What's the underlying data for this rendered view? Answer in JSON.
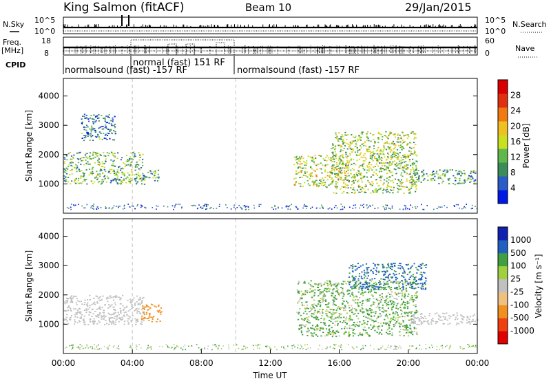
{
  "header": {
    "site": "King Salmon (fitACF)",
    "beam": "Beam 10",
    "date": "29/Jan/2015"
  },
  "status_rows": {
    "nsky": {
      "label": "N.Sky",
      "tick_top": "10^5",
      "tick_bottom": "10^0"
    },
    "nsearch": {
      "label": "N.Search",
      "tick_top": "10^5",
      "tick_bottom": "10^0"
    },
    "freq": {
      "label_line1": "Freq.",
      "label_line2": "[MHz]",
      "tick_top": "18",
      "tick_bottom": "8"
    },
    "nave": {
      "label": "Nave",
      "tick_top": "60",
      "tick_bottom": "0"
    },
    "cpid": {
      "label": "CPID"
    }
  },
  "cpid_segments": [
    {
      "label": "normalsound (fast) -157 RF",
      "start": "00:00",
      "end": "04:00"
    },
    {
      "label": "normal (fast) 151 RF",
      "start": "04:00",
      "end": "10:00"
    },
    {
      "label": "normalsound (fast) -157 RF",
      "start": "10:00",
      "end": "24:00"
    }
  ],
  "colors": {
    "power": [
      "#0018e6",
      "#2a5cc8",
      "#3a8c5a",
      "#5fb84a",
      "#c8e020",
      "#f0c020",
      "#f07a10",
      "#e03010",
      "#d80000"
    ],
    "velocity": [
      "#e00000",
      "#f04010",
      "#f09020",
      "#f0c080",
      "#c0c0c0",
      "#a0d040",
      "#40a040",
      "#2060c0",
      "#1020b0"
    ]
  },
  "chart_data": [
    {
      "type": "heatmap",
      "panel": "power",
      "xlabel": "",
      "ylabel": "Slant Range [km]",
      "xlim": [
        "00:00",
        "24:00"
      ],
      "ylim": [
        0,
        4600
      ],
      "x_ticks": [
        "00:00",
        "04:00",
        "08:00",
        "12:00",
        "16:00",
        "20:00",
        "00:00"
      ],
      "y_ticks": [
        1000,
        2000,
        3000,
        4000
      ],
      "colorbar": {
        "label": "Power [dB]",
        "ticks": [
          4,
          8,
          12,
          16,
          20,
          24,
          28
        ]
      },
      "echo_regions": [
        {
          "start": "00:00",
          "end": "04:40",
          "range_min": 1000,
          "range_max": 2100,
          "level": 12
        },
        {
          "start": "01:00",
          "end": "03:00",
          "range_min": 2500,
          "range_max": 3400,
          "level": 8
        },
        {
          "start": "04:30",
          "end": "05:30",
          "range_min": 1100,
          "range_max": 1500,
          "level": 10
        },
        {
          "start": "13:20",
          "end": "16:30",
          "range_min": 900,
          "range_max": 2000,
          "level": 16
        },
        {
          "start": "15:30",
          "end": "20:30",
          "range_min": 700,
          "range_max": 2800,
          "level": 14
        },
        {
          "start": "20:00",
          "end": "24:00",
          "range_min": 1000,
          "range_max": 1500,
          "level": 10
        }
      ]
    },
    {
      "type": "heatmap",
      "panel": "velocity",
      "xlabel": "Time UT",
      "ylabel": "Slant Range [km]",
      "xlim": [
        "00:00",
        "24:00"
      ],
      "ylim": [
        0,
        4600
      ],
      "x_ticks": [
        "00:00",
        "04:00",
        "08:00",
        "12:00",
        "16:00",
        "20:00",
        "00:00"
      ],
      "y_ticks": [
        1000,
        2000,
        3000,
        4000
      ],
      "colorbar": {
        "label": "Velocity [m s⁻¹]",
        "ticks": [
          1000,
          500,
          100,
          25,
          -25,
          -100,
          -500,
          -1000
        ]
      },
      "echo_regions": [
        {
          "start": "00:00",
          "end": "04:40",
          "range_min": 1000,
          "range_max": 2000,
          "level": 0
        },
        {
          "start": "04:30",
          "end": "05:40",
          "range_min": 1100,
          "range_max": 1700,
          "level": -300
        },
        {
          "start": "13:30",
          "end": "20:30",
          "range_min": 600,
          "range_max": 2500,
          "level": 150
        },
        {
          "start": "16:30",
          "end": "21:00",
          "range_min": 2200,
          "range_max": 3100,
          "level": 600
        },
        {
          "start": "20:00",
          "end": "24:00",
          "range_min": 1000,
          "range_max": 1400,
          "level": 0
        }
      ]
    }
  ]
}
